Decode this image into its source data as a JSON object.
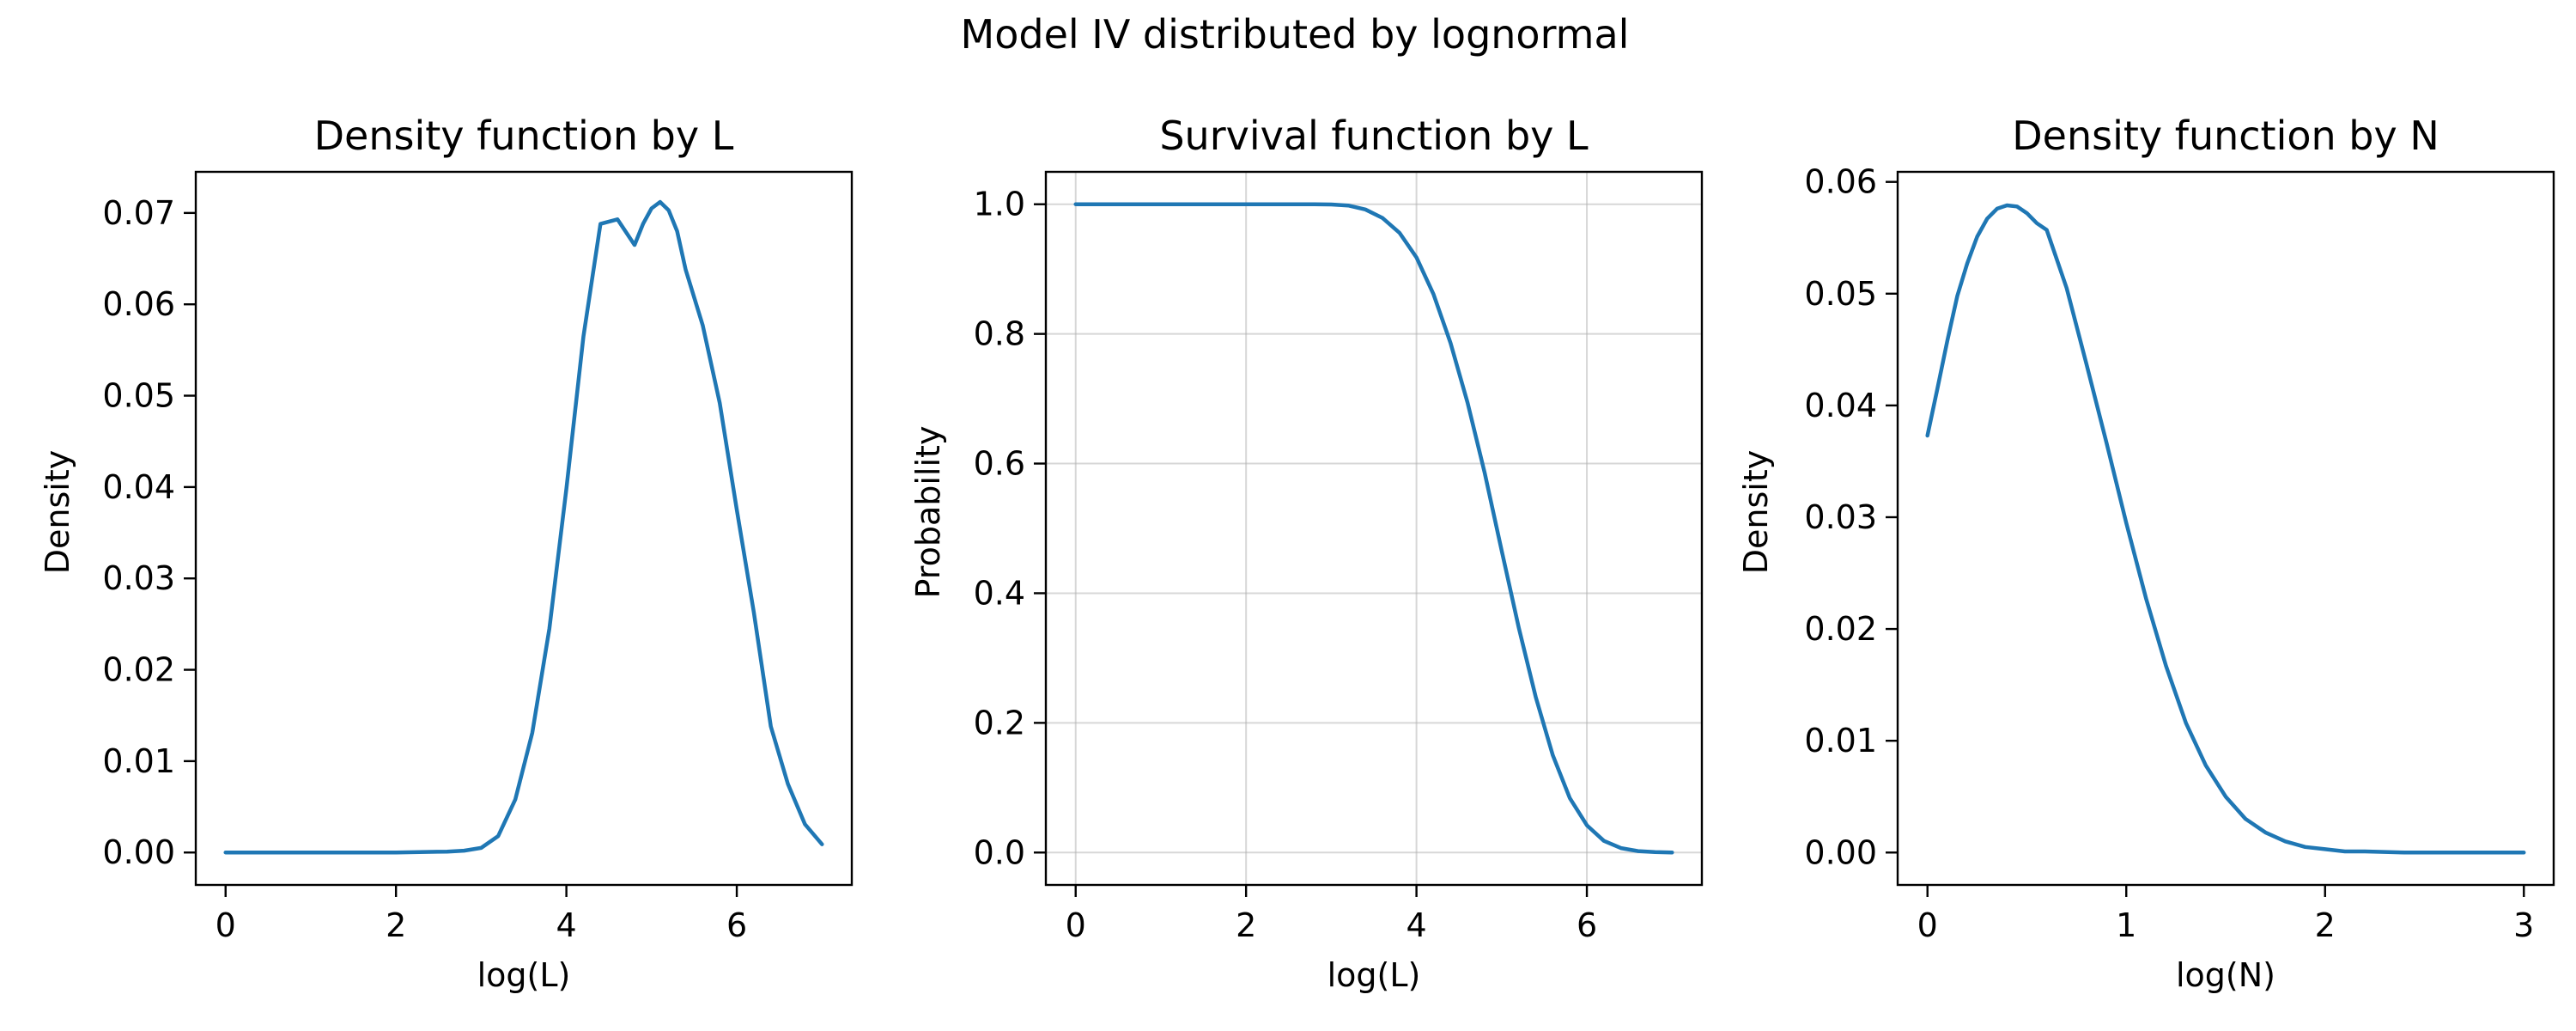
{
  "figure": {
    "suptitle": "Model IV distributed by lognormal",
    "line_color": "#1f77b4"
  },
  "chart_data": [
    {
      "type": "line",
      "title": "Density function by L",
      "xlabel": "log(L)",
      "ylabel": "Density",
      "xlim": [
        -0.35,
        7.35
      ],
      "ylim": [
        -0.00355,
        0.0745
      ],
      "xticks": [
        0,
        2,
        4,
        6
      ],
      "yticks": [
        0.0,
        0.01,
        0.02,
        0.03,
        0.04,
        0.05,
        0.06,
        0.07
      ],
      "xtick_labels": [
        "0",
        "2",
        "4",
        "6"
      ],
      "ytick_labels": [
        "0.00",
        "0.01",
        "0.02",
        "0.03",
        "0.04",
        "0.05",
        "0.06",
        "0.07"
      ],
      "grid": false,
      "series": [
        {
          "x": [
            0,
            1,
            2,
            2.6,
            2.8,
            3.0,
            3.2,
            3.4,
            3.6,
            3.8,
            4.0,
            4.2,
            4.4,
            4.6,
            4.8,
            4.9,
            5.0,
            5.1,
            5.2,
            5.3,
            5.4,
            5.6,
            5.8,
            6.0,
            6.2,
            6.4,
            6.6,
            6.8,
            7.0
          ],
          "y": [
            0.0,
            0.0,
            0.0,
            0.0001,
            0.0002,
            0.0005,
            0.0018,
            0.0058,
            0.0131,
            0.0245,
            0.0398,
            0.0565,
            0.0688,
            0.0693,
            0.0665,
            0.0688,
            0.0705,
            0.0712,
            0.0703,
            0.068,
            0.0638,
            0.0577,
            0.0492,
            0.0375,
            0.0263,
            0.0138,
            0.0075,
            0.0031,
            0.0009
          ]
        }
      ]
    },
    {
      "type": "line",
      "title": "Survival function by L",
      "xlabel": "log(L)",
      "ylabel": "Probability",
      "xlim": [
        -0.35,
        7.35
      ],
      "ylim": [
        -0.05,
        1.05
      ],
      "xticks": [
        0,
        2,
        4,
        6
      ],
      "yticks": [
        0.0,
        0.2,
        0.4,
        0.6,
        0.8,
        1.0
      ],
      "xtick_labels": [
        "0",
        "2",
        "4",
        "6"
      ],
      "ytick_labels": [
        "0.0",
        "0.2",
        "0.4",
        "0.6",
        "0.8",
        "1.0"
      ],
      "grid": true,
      "series": [
        {
          "x": [
            0,
            1,
            2,
            2.8,
            3.0,
            3.2,
            3.4,
            3.6,
            3.8,
            4.0,
            4.2,
            4.4,
            4.6,
            4.8,
            5.0,
            5.2,
            5.4,
            5.6,
            5.8,
            6.0,
            6.2,
            6.4,
            6.6,
            6.8,
            7.0
          ],
          "y": [
            1.0,
            1.0,
            1.0,
            0.9999,
            0.9996,
            0.998,
            0.992,
            0.979,
            0.956,
            0.918,
            0.861,
            0.786,
            0.694,
            0.586,
            0.466,
            0.347,
            0.24,
            0.15,
            0.084,
            0.042,
            0.018,
            0.0068,
            0.0022,
            0.0006,
            0.0001
          ]
        }
      ]
    },
    {
      "type": "line",
      "title": "Density function by N",
      "xlabel": "log(N)",
      "ylabel": "Density",
      "xlim": [
        -0.15,
        3.15
      ],
      "ylim": [
        -0.0029,
        0.0609
      ],
      "xticks": [
        0,
        1,
        2,
        3
      ],
      "yticks": [
        0.0,
        0.01,
        0.02,
        0.03,
        0.04,
        0.05,
        0.06
      ],
      "xtick_labels": [
        "0",
        "1",
        "2",
        "3"
      ],
      "ytick_labels": [
        "0.00",
        "0.01",
        "0.02",
        "0.03",
        "0.04",
        "0.05",
        "0.06"
      ],
      "grid": false,
      "series": [
        {
          "x": [
            0,
            0.05,
            0.1,
            0.15,
            0.2,
            0.25,
            0.3,
            0.35,
            0.4,
            0.45,
            0.5,
            0.55,
            0.6,
            0.7,
            0.8,
            0.9,
            1.0,
            1.1,
            1.2,
            1.3,
            1.4,
            1.5,
            1.6,
            1.7,
            1.8,
            1.9,
            2.0,
            2.1,
            2.2,
            2.4,
            2.6,
            2.8,
            3.0
          ],
          "y": [
            0.0373,
            0.0415,
            0.0458,
            0.0498,
            0.0527,
            0.0551,
            0.0567,
            0.0576,
            0.0579,
            0.0578,
            0.0572,
            0.0563,
            0.0557,
            0.0505,
            0.0437,
            0.0367,
            0.0295,
            0.0227,
            0.0167,
            0.0116,
            0.0078,
            0.005,
            0.003,
            0.0018,
            0.001,
            0.0005,
            0.0003,
            0.0001,
            0.0001,
            0.0,
            0.0,
            0.0,
            0.0
          ]
        }
      ]
    }
  ]
}
